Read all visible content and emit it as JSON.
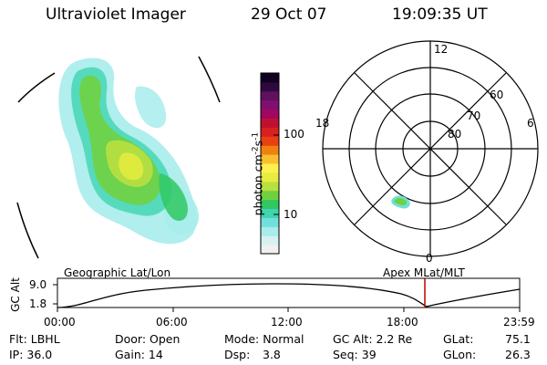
{
  "header": {
    "title": "Ultraviolet Imager",
    "date": "29 Oct 07",
    "time": "19:09:35 UT"
  },
  "colorbar": {
    "label_main": "photon cm",
    "label_exp1": "-2",
    "label_s": "s",
    "label_exp2": "-1",
    "ticks": [
      "100",
      "10"
    ],
    "colors": [
      "#f0f0f0",
      "#d8f0f0",
      "#a8ecec",
      "#70e0dc",
      "#40d4b0",
      "#30c860",
      "#70d040",
      "#b8e040",
      "#e8ec40",
      "#fff050",
      "#f8c030",
      "#f08010",
      "#e84010",
      "#d82020",
      "#c01030",
      "#a00860",
      "#801070",
      "#601060",
      "#300840",
      "#100020"
    ]
  },
  "polar_plot": {
    "mlt_labels": {
      "top": "12",
      "left": "18",
      "right": "6",
      "bottom": "0"
    },
    "lat_labels": [
      "60",
      "70",
      "80"
    ]
  },
  "timeline": {
    "left_label": "Geographic Lat/Lon",
    "right_label": "Apex  MLat/MLT",
    "axis_title": "GC Alt",
    "y_ticks": [
      "9.0",
      "1.8"
    ],
    "x_ticks": [
      "00:00",
      "06:00",
      "12:00",
      "18:00",
      "23:59"
    ],
    "marker_color": "#c00000"
  },
  "info": {
    "filter": "Flt: LBHL",
    "ip": "IP: 36.0",
    "door": "Door: Open",
    "gain": "Gain: 14",
    "mode": "Mode: Normal",
    "dsp_label": "Dsp:",
    "dsp_value": "3.8",
    "gc_alt": "GC Alt: 2.2 Re",
    "seq": "Seq: 39",
    "glat_label": "GLat:",
    "glat_value": "75.1",
    "glon_label": "GLon:",
    "glon_value": "26.3"
  }
}
